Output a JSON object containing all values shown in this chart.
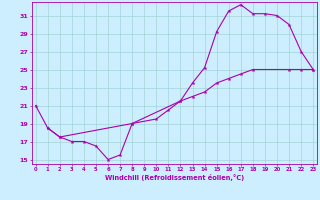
{
  "xlabel": "Windchill (Refroidissement éolien,°C)",
  "bg_color": "#cceeff",
  "line_color": "#aa00aa",
  "grid_color": "#99cccc",
  "line1_x": [
    0,
    1,
    2,
    3,
    4,
    5,
    6,
    7,
    8
  ],
  "line1_y": [
    21,
    18.5,
    17.5,
    17.0,
    17.0,
    16.5,
    15.0,
    15.5,
    19.0
  ],
  "line2_x": [
    8,
    12,
    13,
    14,
    15,
    16,
    17,
    18,
    19,
    20,
    21,
    22,
    23
  ],
  "line2_y": [
    19.0,
    21.5,
    23.5,
    25.2,
    29.2,
    31.5,
    32.2,
    31.2,
    31.2,
    31.0,
    30.0,
    27.0,
    25.0
  ],
  "line3_x": [
    1,
    2,
    10,
    11,
    12,
    13,
    14,
    15,
    16,
    17,
    18,
    21,
    22,
    23
  ],
  "line3_y": [
    18.5,
    17.5,
    19.5,
    20.5,
    21.5,
    22.0,
    22.5,
    23.5,
    24.0,
    24.5,
    25.0,
    25.0,
    25.0,
    25.0
  ],
  "xlim": [
    -0.3,
    23.3
  ],
  "ylim": [
    14.5,
    32.5
  ],
  "yticks": [
    15,
    17,
    19,
    21,
    23,
    25,
    27,
    29,
    31
  ],
  "xticks": [
    0,
    1,
    2,
    3,
    4,
    5,
    6,
    7,
    8,
    9,
    10,
    11,
    12,
    13,
    14,
    15,
    16,
    17,
    18,
    19,
    20,
    21,
    22,
    23
  ]
}
